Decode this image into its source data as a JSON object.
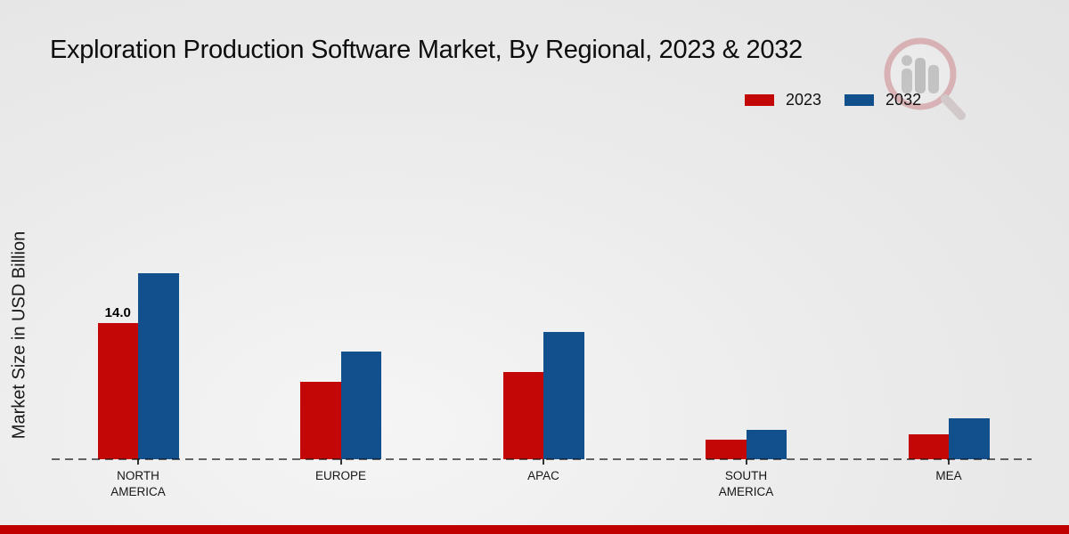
{
  "title": "Exploration Production Software Market, By Regional, 2023 & 2032",
  "y_axis_label": "Market Size in USD Billion",
  "legend": {
    "items": [
      {
        "label": "2023",
        "color": "#c30606"
      },
      {
        "label": "2032",
        "color": "#11508c"
      }
    ],
    "position": "top-right"
  },
  "colors": {
    "series_2023": "#c30606",
    "series_2032": "#11508c",
    "footer": "#c00000",
    "axis": "#222222",
    "text": "#1a1a1a",
    "background": "#ebebeb"
  },
  "watermark_icon": "magnifier-bar-chart-logo",
  "chart_data": {
    "type": "bar",
    "title": "Exploration Production Software Market, By Regional, 2023 & 2032",
    "xlabel": "",
    "ylabel": "Market Size in USD Billion",
    "categories": [
      "NORTH AMERICA",
      "EUROPE",
      "APAC",
      "SOUTH AMERICA",
      "MEA"
    ],
    "series": [
      {
        "name": "2023",
        "color": "#c30606",
        "values": [
          14.0,
          8.0,
          9.0,
          2.0,
          2.6
        ],
        "labels": [
          "14.0",
          "",
          "",
          "",
          ""
        ]
      },
      {
        "name": "2032",
        "color": "#11508c",
        "values": [
          19.1,
          11.1,
          13.1,
          3.0,
          4.2
        ],
        "labels": [
          "",
          "",
          "",
          "",
          ""
        ]
      }
    ],
    "ylim": [
      0,
      20
    ],
    "grid": false,
    "baseline_style": "dashed",
    "legend_position": "top-right",
    "data_label_note": "only North America 2023 bar is labeled"
  }
}
